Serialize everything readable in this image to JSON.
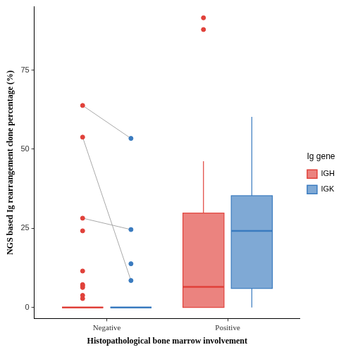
{
  "chart_data": {
    "type": "box",
    "x_label": "Histopathological bone marrow involvement",
    "y_label": "NGS based Ig rearrangement clone percentage (%)",
    "legend_title": "Ig gene",
    "categories": [
      "Negative",
      "Positive"
    ],
    "series": [
      {
        "name": "IGH",
        "color": "#e0413a",
        "boxes": [
          {
            "whisker_low": 0,
            "q1": 0,
            "median": 0,
            "q3": 0,
            "whisker_high": 0,
            "outliers": [
              63.8,
              53.8,
              28.2,
              24.2,
              11.5,
              7.2,
              6.8,
              6.3,
              3.8,
              2.8
            ]
          },
          {
            "whisker_low": 0,
            "q1": 0,
            "median": 6.5,
            "q3": 29.8,
            "whisker_high": 46.2,
            "outliers": [
              91.5,
              87.8
            ]
          }
        ]
      },
      {
        "name": "IGK",
        "color": "#3a7bbf",
        "boxes": [
          {
            "whisker_low": 0,
            "q1": 0,
            "median": 0,
            "q3": 0,
            "whisker_high": 0,
            "outliers": [
              53.4,
              24.6,
              13.8,
              8.5
            ]
          },
          {
            "whisker_low": 0,
            "q1": 6,
            "median": 24.2,
            "q3": 35.3,
            "whisker_high": 60.2,
            "outliers": []
          }
        ]
      }
    ],
    "pairs": [
      {
        "category": "Negative",
        "from": 63.8,
        "to": 53.4
      },
      {
        "category": "Negative",
        "from": 53.8,
        "to": 8.5
      },
      {
        "category": "Negative",
        "from": 28.2,
        "to": 24.6
      }
    ],
    "ylim": [
      -3.5,
      95
    ],
    "yticks": [
      0,
      25,
      50,
      75
    ],
    "grid": false,
    "legend": "right"
  }
}
